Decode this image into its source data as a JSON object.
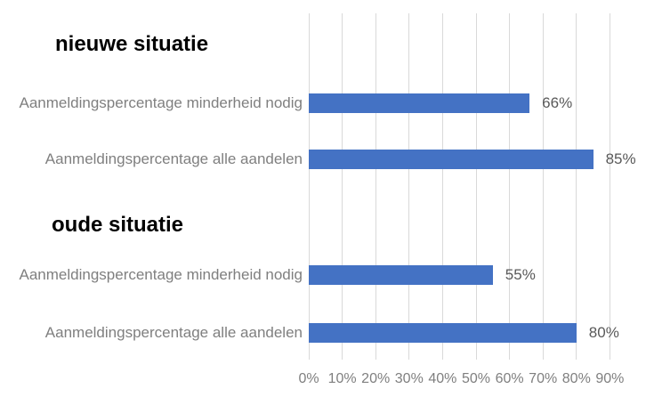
{
  "chart_data": {
    "type": "bar",
    "orientation": "horizontal",
    "background": "#FFFFFF",
    "grid": true,
    "legend": false,
    "groups": [
      {
        "heading": "nieuwe situatie",
        "bars": [
          {
            "category": "Aanmeldingspercentage minderheid nodig",
            "value": 66,
            "value_label": "66%"
          },
          {
            "category": "Aanmeldingspercentage alle aandelen",
            "value": 85,
            "value_label": "85%"
          }
        ]
      },
      {
        "heading": "oude situatie",
        "bars": [
          {
            "category": "Aanmeldingspercentage minderheid nodig",
            "value": 55,
            "value_label": "55%"
          },
          {
            "category": "Aanmeldingspercentage alle aandelen",
            "value": 80,
            "value_label": "80%"
          }
        ]
      }
    ],
    "x_axis": {
      "min": 0,
      "max": 90,
      "step": 10,
      "tick_labels": [
        "0%",
        "10%",
        "20%",
        "30%",
        "40%",
        "50%",
        "60%",
        "70%",
        "80%",
        "90%"
      ]
    },
    "colors": {
      "bar": "#4472C4",
      "gridline": "#D9D9D9",
      "category_label": "#7F7F7F",
      "value_label": "#595959",
      "axis_label": "#7F7F7F",
      "heading": "#000000"
    }
  }
}
